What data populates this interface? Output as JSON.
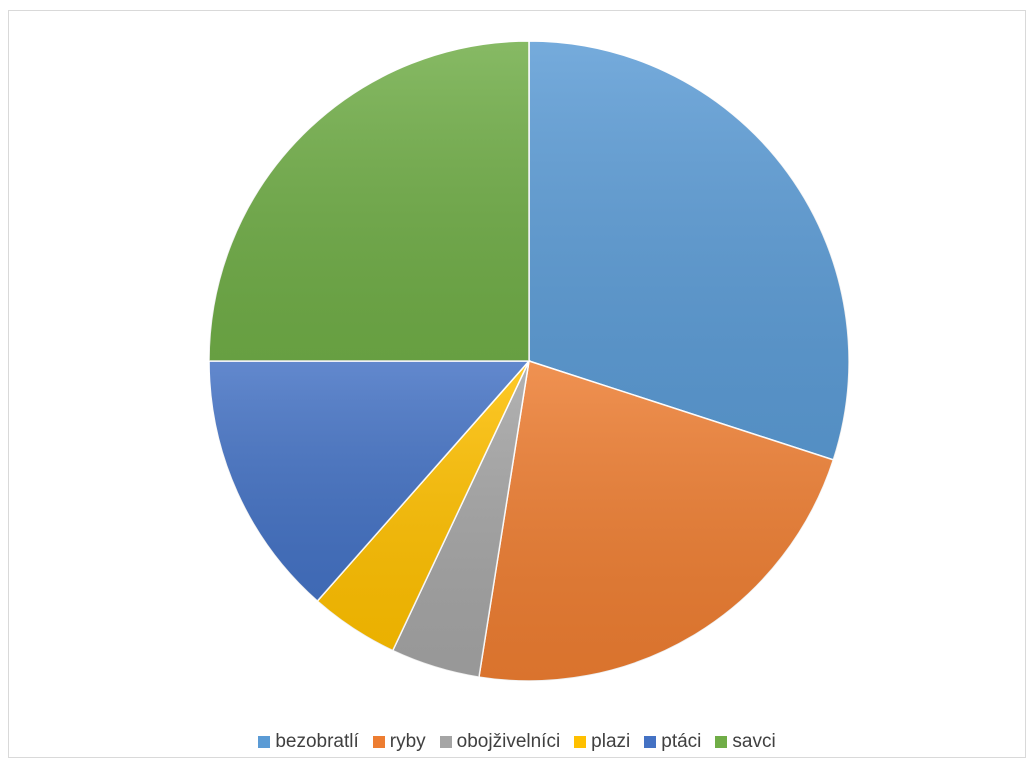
{
  "chart_data": {
    "type": "pie",
    "title": "",
    "start_angle_deg": 0,
    "direction": "clockwise",
    "legend_position": "bottom",
    "slices": [
      {
        "label": "bezobratlí",
        "value": 30.0,
        "color": "#5b9bd5"
      },
      {
        "label": "ryby",
        "value": 22.5,
        "color": "#ed7d31"
      },
      {
        "label": "obojživelníci",
        "value": 4.5,
        "color": "#a5a5a5"
      },
      {
        "label": "plazi",
        "value": 4.5,
        "color": "#ffc000"
      },
      {
        "label": "ptáci",
        "value": 13.5,
        "color": "#4472c4"
      },
      {
        "label": "savci",
        "value": 25.0,
        "color": "#70ad47"
      }
    ]
  }
}
